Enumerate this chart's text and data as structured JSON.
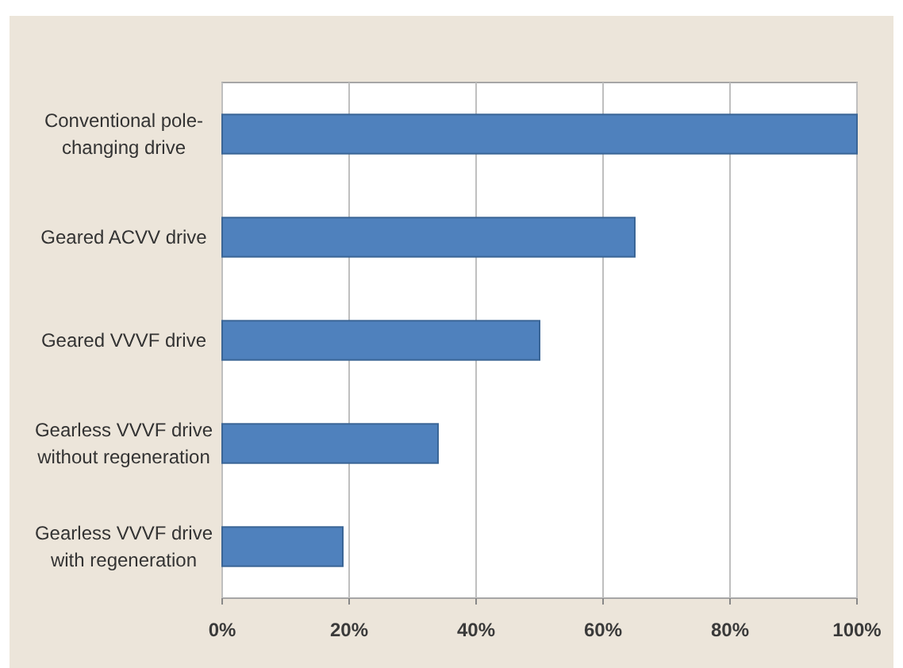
{
  "chart_data": {
    "type": "bar",
    "orientation": "horizontal",
    "categories": [
      "Conventional pole-changing drive",
      "Geared ACVV drive",
      "Geared VVVF drive",
      "Gearless VVVF drive without regeneration",
      "Gearless VVVF drive with regeneration"
    ],
    "values": [
      100,
      65,
      50,
      34,
      19
    ],
    "color": "#4f81bd",
    "xlim": [
      0,
      100
    ],
    "xticks": [
      {
        "value": 0,
        "label": "0%"
      },
      {
        "value": 20,
        "label": "20%"
      },
      {
        "value": 40,
        "label": "40%"
      },
      {
        "value": 60,
        "label": "60%"
      },
      {
        "value": 80,
        "label": "80%"
      },
      {
        "value": 100,
        "label": "100%"
      }
    ],
    "grid": "x"
  }
}
